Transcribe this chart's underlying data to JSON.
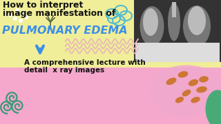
{
  "bg_yellow": "#f0ee98",
  "bg_pink": "#f5a8cc",
  "text1": "How to interpret",
  "text2": "image manifestation of",
  "text3": "PULMONARY EDEMA",
  "text4": "A comprehensive lecture with",
  "text5": "detail  x ray images",
  "text_dark": "#111111",
  "text_blue": "#3b8fe8",
  "arrow_color": "#3b8fe8",
  "wave_color": "#e8b8b8",
  "teal_outline": "#55bbcc",
  "white_dot": "#ffffff",
  "leaf_color": "#556644",
  "spiral_color": "#3a9977",
  "dots_color": "#cc7733",
  "green_blob": "#4aaa77",
  "xray_dark": "#333333",
  "xray_mid": "#777777",
  "xray_light": "#bbbbbb",
  "xray_bright": "#dddddd"
}
